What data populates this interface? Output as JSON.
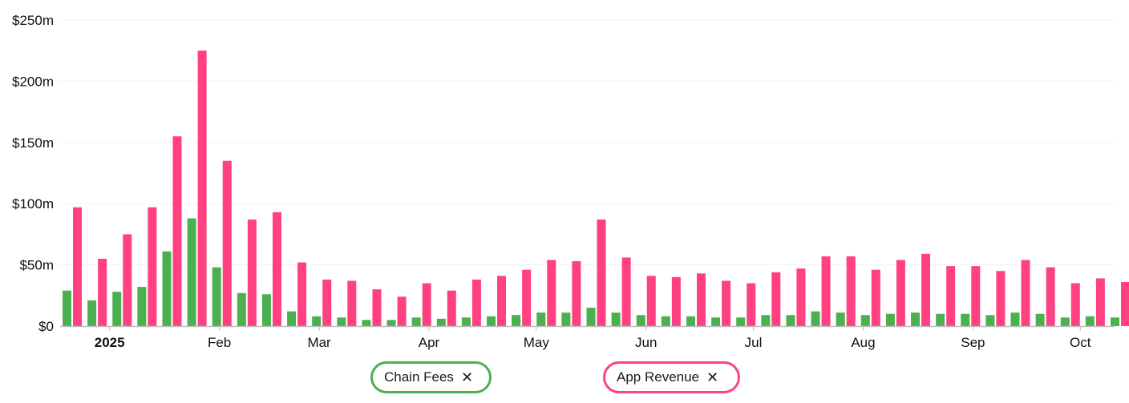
{
  "chart_data": {
    "type": "bar",
    "ylim": [
      0,
      250
    ],
    "y_ticks": [
      {
        "value": 0,
        "label": "$0"
      },
      {
        "value": 50,
        "label": "$50m"
      },
      {
        "value": 100,
        "label": "$100m"
      },
      {
        "value": 150,
        "label": "$150m"
      },
      {
        "value": 200,
        "label": "$200m"
      },
      {
        "value": 250,
        "label": "$250m"
      }
    ],
    "x_ticks": [
      {
        "index": 1.5,
        "label": "2025",
        "bold": true
      },
      {
        "index": 5.9,
        "label": "Feb",
        "bold": false
      },
      {
        "index": 9.9,
        "label": "Mar",
        "bold": false
      },
      {
        "index": 14.3,
        "label": "Apr",
        "bold": false
      },
      {
        "index": 18.6,
        "label": "May",
        "bold": false
      },
      {
        "index": 23.0,
        "label": "Jun",
        "bold": false
      },
      {
        "index": 27.3,
        "label": "Jul",
        "bold": false
      },
      {
        "index": 31.7,
        "label": "Aug",
        "bold": false
      },
      {
        "index": 36.1,
        "label": "Sep",
        "bold": false
      },
      {
        "index": 40.4,
        "label": "Oct",
        "bold": false
      }
    ],
    "grid": true,
    "legend_position": "bottom",
    "series": [
      {
        "name": "Chain Fees",
        "color": "#4caf50",
        "values": [
          29,
          21,
          28,
          32,
          61,
          88,
          48,
          27,
          26,
          12,
          8,
          7,
          5,
          5,
          7,
          6,
          7,
          8,
          9,
          11,
          11,
          15,
          11,
          9,
          8,
          8,
          7,
          7,
          9,
          9,
          12,
          11,
          9,
          10,
          11,
          10,
          10,
          9,
          11,
          10,
          7,
          8,
          7
        ]
      },
      {
        "name": "App Revenue",
        "color": "#ff4081",
        "values": [
          97,
          55,
          75,
          97,
          155,
          225,
          135,
          87,
          93,
          52,
          38,
          37,
          30,
          24,
          35,
          29,
          38,
          41,
          46,
          54,
          53,
          87,
          56,
          41,
          40,
          43,
          37,
          35,
          44,
          47,
          57,
          57,
          46,
          54,
          59,
          49,
          49,
          45,
          54,
          48,
          35,
          39,
          36
        ]
      }
    ]
  },
  "legend": {
    "chain_fees_label": "Chain Fees",
    "app_revenue_label": "App Revenue",
    "close_glyph": "✕"
  }
}
